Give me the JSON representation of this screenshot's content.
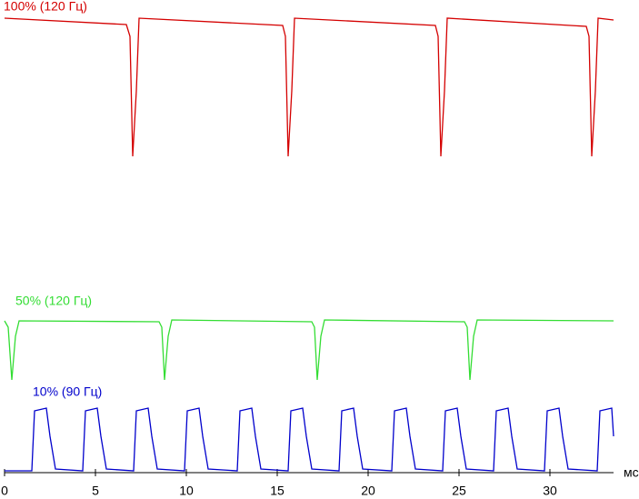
{
  "chart_data": {
    "type": "line",
    "x_label": "мс",
    "xlim": [
      0,
      34.9
    ],
    "xticks": [
      0,
      5,
      10,
      15,
      20,
      25,
      30
    ],
    "ylim": [
      0,
      520
    ],
    "series": [
      {
        "name": "100% (120 Гц)",
        "color": "#d40000",
        "x": [
          0,
          6.7,
          6.9,
          7.05,
          7.25,
          7.4,
          15.3,
          15.45,
          15.6,
          15.8,
          15.95,
          23.7,
          23.85,
          24.0,
          24.2,
          24.35,
          32.0,
          32.15,
          32.3,
          32.5,
          32.65,
          33.5
        ],
        "values": [
          500,
          493,
          480,
          348,
          420,
          500,
          492,
          480,
          348,
          420,
          500,
          492,
          480,
          348,
          420,
          500,
          491,
          480,
          348,
          420,
          500,
          498
        ]
      },
      {
        "name": "50% (120 Гц)",
        "color": "#33dd33",
        "x": [
          0,
          0.2,
          0.4,
          0.6,
          0.8,
          8.5,
          8.65,
          8.8,
          9.0,
          9.2,
          16.9,
          17.05,
          17.2,
          17.4,
          17.6,
          25.3,
          25.45,
          25.6,
          25.8,
          26.0,
          33.5
        ],
        "values": [
          167,
          160,
          102,
          150,
          167,
          166,
          160,
          102,
          150,
          168,
          166,
          160,
          102,
          150,
          168,
          166,
          160,
          102,
          150,
          168,
          167
        ]
      },
      {
        "name": "10% (90 Гц)",
        "color": "#0000cc",
        "x": [
          0,
          1.5,
          1.65,
          2.3,
          2.5,
          2.8,
          4.3,
          4.45,
          5.1,
          5.3,
          5.6,
          7.1,
          7.25,
          7.9,
          8.1,
          8.4,
          9.9,
          10.05,
          10.7,
          10.9,
          11.2,
          12.8,
          12.95,
          13.6,
          13.8,
          14.1,
          15.6,
          15.75,
          16.4,
          16.6,
          16.9,
          18.4,
          18.55,
          19.2,
          19.4,
          19.7,
          21.3,
          21.45,
          22.1,
          22.3,
          22.6,
          24.1,
          24.25,
          24.9,
          25.1,
          25.4,
          26.9,
          27.05,
          27.7,
          27.9,
          28.2,
          29.7,
          29.85,
          30.5,
          30.7,
          31.0,
          32.6,
          32.75,
          33.4,
          33.5
        ],
        "values": [
          2,
          2,
          68,
          71,
          40,
          4,
          2,
          68,
          71,
          40,
          4,
          2,
          68,
          71,
          40,
          4,
          2,
          68,
          71,
          40,
          4,
          2,
          68,
          71,
          40,
          4,
          2,
          68,
          71,
          40,
          4,
          2,
          68,
          71,
          40,
          4,
          2,
          68,
          71,
          40,
          4,
          2,
          68,
          71,
          40,
          4,
          2,
          68,
          71,
          40,
          4,
          2,
          68,
          71,
          40,
          4,
          2,
          68,
          71,
          40
        ]
      }
    ]
  }
}
